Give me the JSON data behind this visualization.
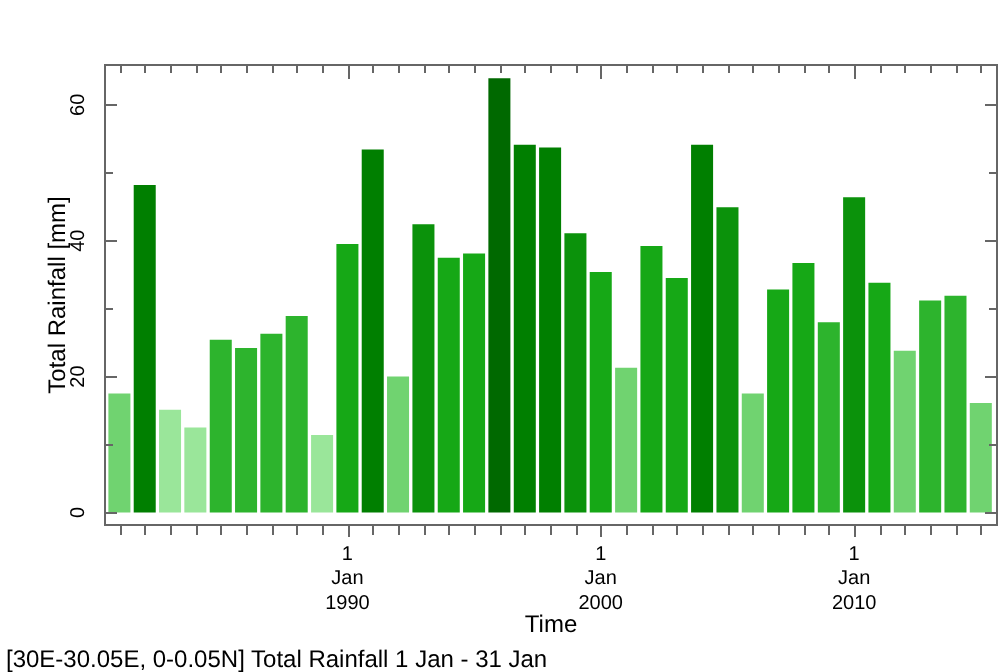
{
  "chart_data": {
    "type": "bar",
    "title": "[30E-30.05E, 0-0.05N] Total Rainfall 1 Jan - 31 Jan",
    "xlabel": "Time",
    "ylabel": "Total Rainfall [mm]",
    "x": [
      "1981-01",
      "1982-01",
      "1983-01",
      "1984-01",
      "1985-01",
      "1986-01",
      "1987-01",
      "1988-01",
      "1989-01",
      "1990-01",
      "1991-01",
      "1992-01",
      "1993-01",
      "1994-01",
      "1995-01",
      "1996-01",
      "1997-01",
      "1998-01",
      "1999-01",
      "2000-01",
      "2001-01",
      "2002-01",
      "2003-01",
      "2004-01",
      "2005-01",
      "2006-01",
      "2007-01",
      "2008-01",
      "2009-01",
      "2010-01",
      "2011-01",
      "2012-01",
      "2013-01",
      "2014-01",
      "2015-01"
    ],
    "values": [
      17.5,
      48.2,
      15.1,
      12.5,
      25.4,
      24.2,
      26.3,
      28.9,
      11.4,
      39.5,
      53.4,
      20.0,
      42.4,
      37.5,
      38.1,
      63.9,
      54.1,
      53.7,
      41.1,
      35.4,
      21.3,
      39.2,
      34.5,
      54.1,
      44.9,
      17.5,
      32.8,
      36.7,
      28.0,
      46.4,
      33.8,
      23.8,
      31.2,
      31.9,
      16.1
    ],
    "colors": [
      "#70d370",
      "#007f00",
      "#9ae69a",
      "#9ae69a",
      "#2db42d",
      "#2db42d",
      "#2db42d",
      "#2db42d",
      "#9ae69a",
      "#16a816",
      "#007f00",
      "#70d370",
      "#0b920b",
      "#16a816",
      "#16a816",
      "#006900",
      "#007f00",
      "#007f00",
      "#0b920b",
      "#16a816",
      "#70d370",
      "#16a816",
      "#16a816",
      "#007f00",
      "#0b920b",
      "#70d370",
      "#16a816",
      "#16a816",
      "#2db42d",
      "#0b920b",
      "#16a816",
      "#70d370",
      "#2db42d",
      "#2db42d",
      "#70d370"
    ],
    "xlim": [
      "1980-05-24",
      "2015-09-06"
    ],
    "xticks": [
      {
        "value": "1981-01-01",
        "label": null
      },
      {
        "value": "1982-01-01",
        "label": null
      },
      {
        "value": "1983-01-01",
        "label": null
      },
      {
        "value": "1984-01-01",
        "label": null
      },
      {
        "value": "1985-01-01",
        "label": null
      },
      {
        "value": "1986-01-01",
        "label": null
      },
      {
        "value": "1987-01-01",
        "label": null
      },
      {
        "value": "1988-01-01",
        "label": null
      },
      {
        "value": "1989-01-01",
        "label": null
      },
      {
        "value": "1990-01-01",
        "label": "1 Jan 1990"
      },
      {
        "value": "1991-01-01",
        "label": null
      },
      {
        "value": "1992-01-01",
        "label": null
      },
      {
        "value": "1993-01-01",
        "label": null
      },
      {
        "value": "1994-01-01",
        "label": null
      },
      {
        "value": "1995-01-01",
        "label": null
      },
      {
        "value": "1996-01-01",
        "label": null
      },
      {
        "value": "1997-01-01",
        "label": null
      },
      {
        "value": "1998-01-01",
        "label": null
      },
      {
        "value": "1999-01-01",
        "label": null
      },
      {
        "value": "2000-01-01",
        "label": "1 Jan 2000"
      },
      {
        "value": "2001-01-01",
        "label": null
      },
      {
        "value": "2002-01-01",
        "label": null
      },
      {
        "value": "2003-01-01",
        "label": null
      },
      {
        "value": "2004-01-01",
        "label": null
      },
      {
        "value": "2005-01-01",
        "label": null
      },
      {
        "value": "2006-01-01",
        "label": null
      },
      {
        "value": "2007-01-01",
        "label": null
      },
      {
        "value": "2008-01-01",
        "label": null
      },
      {
        "value": "2009-01-01",
        "label": null
      },
      {
        "value": "2010-01-01",
        "label": "1 Jan 2010"
      },
      {
        "value": "2011-01-01",
        "label": null
      },
      {
        "value": "2012-01-01",
        "label": null
      },
      {
        "value": "2013-01-01",
        "label": null
      },
      {
        "value": "2014-01-01",
        "label": null
      },
      {
        "value": "2015-01-01",
        "label": null
      }
    ],
    "ylim": [
      -2,
      66
    ],
    "yticks": [
      0,
      {
        "value": 10,
        "label": null
      },
      20,
      {
        "value": 30,
        "label": null
      },
      40,
      {
        "value": 50,
        "label": null
      },
      60
    ]
  }
}
